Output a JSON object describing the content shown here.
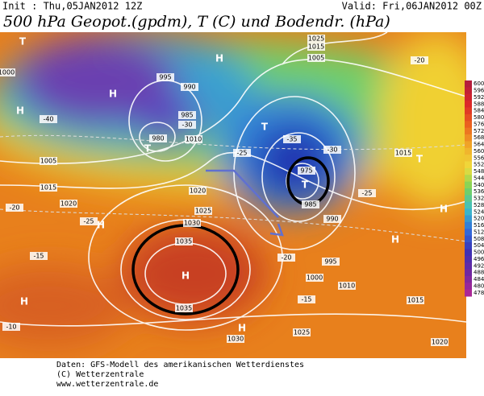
{
  "header": {
    "init": "Init : Thu,05JAN2012 12Z",
    "valid": "Valid: Fri,06JAN2012 00Z",
    "title": "500 hPa Geopot.(gpdm), T (C) und Bodendr. (hPa)"
  },
  "colorbar": {
    "labels": [
      600,
      596,
      592,
      588,
      584,
      580,
      576,
      572,
      568,
      564,
      560,
      556,
      552,
      548,
      544,
      540,
      536,
      532,
      528,
      524,
      520,
      516,
      512,
      508,
      504,
      500,
      496,
      492,
      488,
      484,
      480,
      478
    ]
  },
  "map": {
    "contour_labels": [
      1035,
      1035,
      1030,
      1025,
      1020,
      1020,
      1015,
      1010,
      995,
      985,
      980,
      975,
      985,
      990,
      995,
      1000,
      1010,
      1015,
      1015,
      1020,
      1025,
      1030,
      1005,
      1025,
      1015,
      1000,
      1005,
      990
    ],
    "temperature_labels": [
      -35,
      -30,
      -25,
      -20,
      -15,
      -10,
      -15,
      -20,
      -25,
      -40,
      -30,
      -25,
      -20
    ],
    "markers": [
      "H",
      "H",
      "H",
      "H",
      "H",
      "H",
      "H",
      "H",
      "H",
      "T",
      "T",
      "T",
      "T",
      "T"
    ]
  },
  "footer": {
    "lines": [
      "Daten: GFS-Modell des amerikanischen Wetterdienstes",
      "(C) Wetterzentrale",
      "www.wetterzentrale.de"
    ]
  }
}
